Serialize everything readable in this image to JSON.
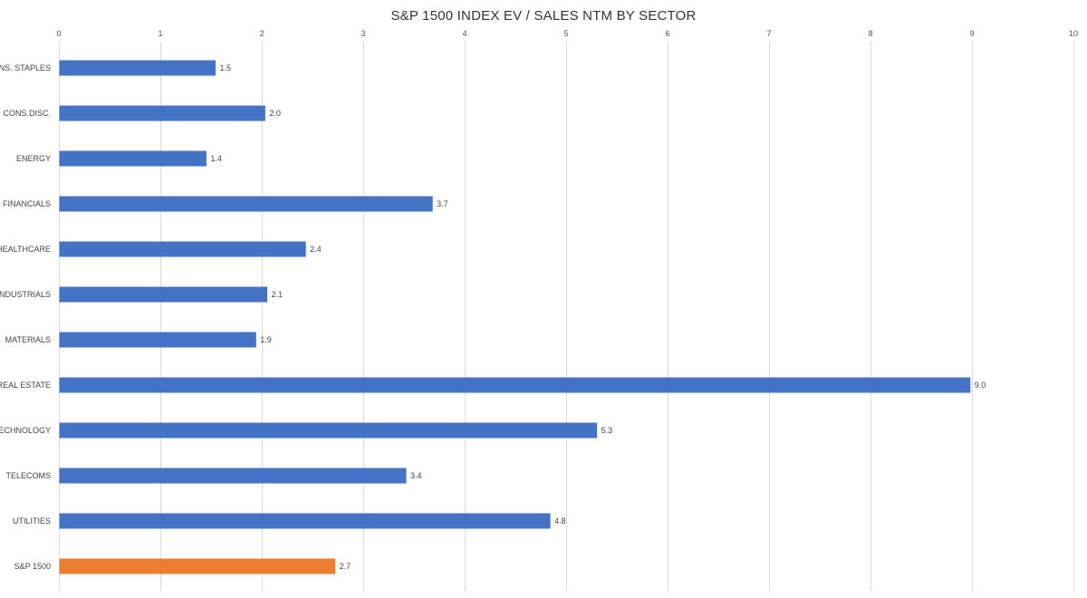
{
  "chart_data": {
    "type": "bar",
    "orientation": "horizontal",
    "title": "S&P 1500 INDEX EV / SALES NTM BY SECTOR",
    "xlabel": "",
    "ylabel": "",
    "xlim": [
      0,
      10
    ],
    "x_ticks": [
      0,
      1,
      2,
      3,
      4,
      5,
      6,
      7,
      8,
      9,
      10
    ],
    "x_axis_position": "top",
    "grid": true,
    "legend": "none",
    "categories": [
      "CONS. STAPLES",
      "CONS.DISC.",
      "ENERGY",
      "FINANCIALS",
      "HEALTHCARE",
      "INDUSTRIALS",
      "MATERIALS",
      "REAL ESTATE",
      "TECHNOLOGY",
      "TELECOMS",
      "UTILITIES",
      "S&P 1500"
    ],
    "values": [
      1.54,
      2.03,
      1.45,
      3.68,
      2.43,
      2.05,
      1.94,
      8.98,
      5.3,
      3.42,
      4.84,
      2.72
    ],
    "data_labels": [
      "1.5",
      "2.0",
      "1.4",
      "3.7",
      "2.4",
      "2.1",
      "1.9",
      "9.0",
      "5.3",
      "3.4",
      "4.8",
      "2.7"
    ],
    "colors": {
      "default": "#4472c4",
      "highlight": "#ed7d31"
    },
    "highlight_category": "S&P 1500"
  }
}
